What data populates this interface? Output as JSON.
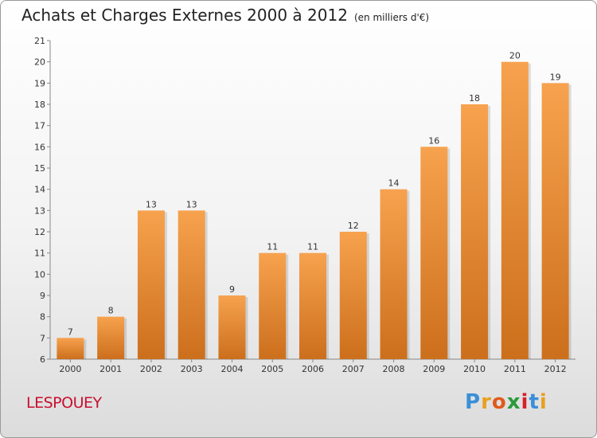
{
  "header": {
    "title": "Achats et Charges Externes 2000 à 2012",
    "subtitle": "(en milliers d'€)"
  },
  "commune": "LESPOUEY",
  "logo": {
    "letters": [
      "P",
      "r",
      "o",
      "x",
      "i",
      "t",
      "i"
    ],
    "colors": [
      "#3a8fd8",
      "#e8a020",
      "#e05a1a",
      "#2a9a3a",
      "#d8202a",
      "#3a8fd8",
      "#e8a020"
    ]
  },
  "chart_data": {
    "type": "bar",
    "categories": [
      "2000",
      "2001",
      "2002",
      "2003",
      "2004",
      "2005",
      "2006",
      "2007",
      "2008",
      "2009",
      "2010",
      "2011",
      "2012"
    ],
    "values": [
      7,
      8,
      13,
      13,
      9,
      11,
      11,
      12,
      14,
      16,
      18,
      20,
      19
    ],
    "data_labels": [
      "7",
      "8",
      "13",
      "13",
      "9",
      "11",
      "11",
      "12",
      "14",
      "16",
      "18",
      "20",
      "19"
    ],
    "ylim": [
      6,
      21
    ],
    "yticks": [
      6,
      7,
      8,
      9,
      10,
      11,
      12,
      13,
      14,
      15,
      16,
      17,
      18,
      19,
      20,
      21
    ],
    "grid": false,
    "bar_color_top": "#f7a24e",
    "bar_color_bottom": "#cc6f1c",
    "xlabel": "",
    "ylabel": ""
  }
}
